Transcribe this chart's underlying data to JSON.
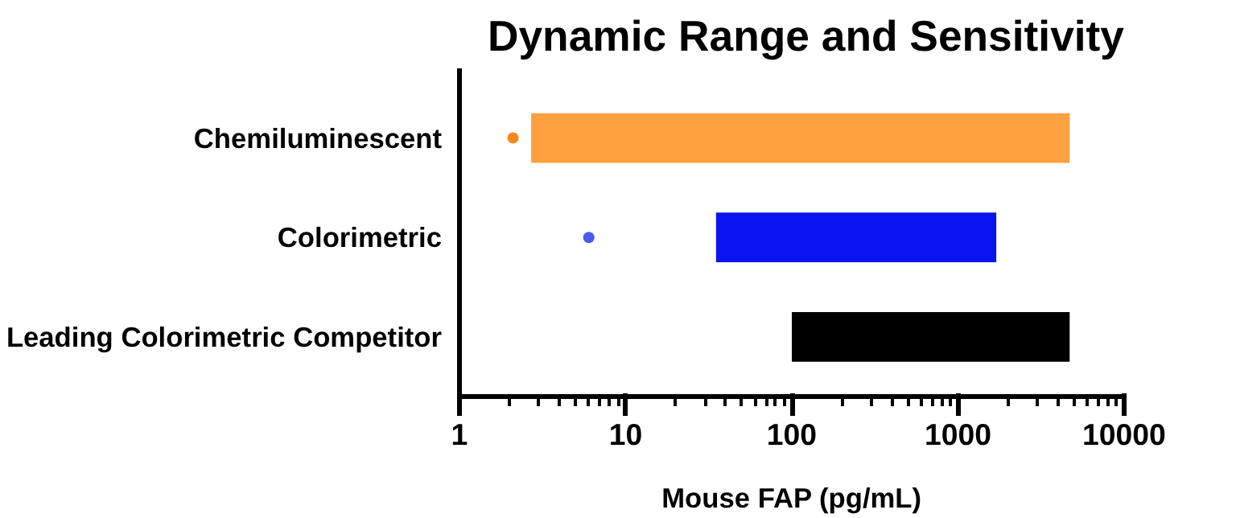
{
  "chart_data": {
    "type": "bar",
    "orientation": "horizontal",
    "title": "Dynamic Range and Sensitivity",
    "xlabel": "Mouse FAP (pg/mL)",
    "categories": [
      "Chemiluminescent",
      "Colorimetric",
      "Leading Colorimetric Competitor"
    ],
    "series": [
      {
        "colors": [
          "#ffa040",
          "#0a14f0",
          "#000000"
        ],
        "base": [
          2.7,
          35,
          100
        ],
        "values": [
          4697.3,
          1665,
          4600
        ]
      },
      {
        "type": "scatter",
        "colors": [
          "#f58a1f",
          "#4a5af0",
          null
        ],
        "values": [
          2.1,
          6,
          null
        ]
      }
    ],
    "log": "x",
    "xlim": [
      1,
      10000
    ],
    "xticks": [
      1,
      10,
      100,
      1000,
      10000
    ],
    "grid": false,
    "marker": "circle"
  }
}
